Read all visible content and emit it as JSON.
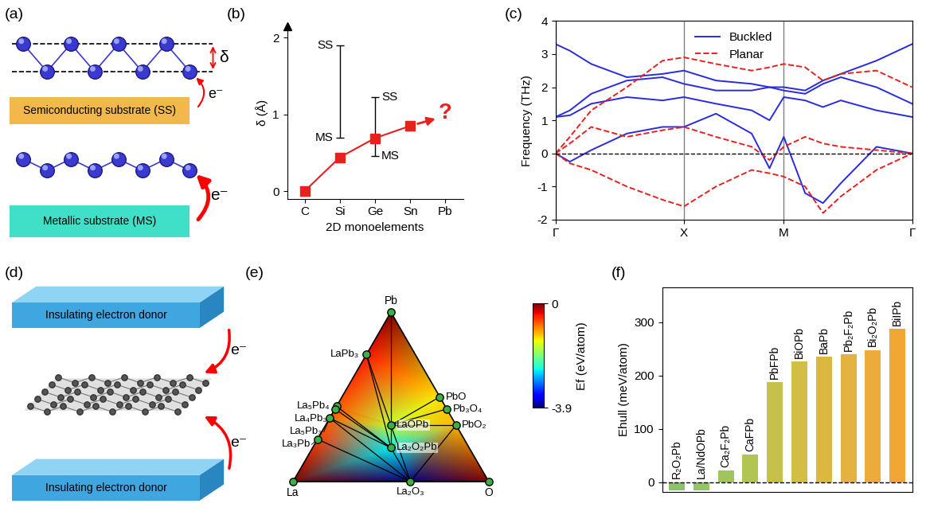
{
  "chart_data": [
    {
      "type": "line",
      "title": "(b)",
      "x_label": "2D monoelements",
      "y_label": "δ (Å)",
      "categories": [
        "C",
        "Si",
        "Ge",
        "Sn",
        "Pb"
      ],
      "values": [
        0,
        0.44,
        0.69,
        0.85,
        null
      ],
      "color": "#e8201e",
      "marker": "square",
      "ylim": [
        -0.1,
        2.15
      ],
      "yticks": [
        0,
        1,
        2
      ],
      "ranges": [
        {
          "category": "Si",
          "low": 0.7,
          "high": 1.9,
          "low_label": "MS",
          "high_label": "SS"
        },
        {
          "category": "Ge",
          "low": 0.46,
          "high": 1.23,
          "low_label": "MS",
          "high_label": "SS"
        }
      ],
      "annotations": [
        "?"
      ]
    },
    {
      "type": "line",
      "title": "(c)",
      "y_label": "Frequency (THz)",
      "x": [
        0,
        0.04,
        0.1,
        0.2,
        0.3,
        0.36,
        0.45,
        0.55,
        0.6,
        0.64,
        0.7,
        0.75,
        0.8,
        0.9,
        1.0
      ],
      "xlim": [
        0,
        1
      ],
      "xticks": [
        {
          "value": 0,
          "label": "Γ"
        },
        {
          "value": 0.36,
          "label": "X"
        },
        {
          "value": 0.64,
          "label": "M"
        },
        {
          "value": 1,
          "label": "Γ"
        }
      ],
      "ylim": [
        -2,
        4
      ],
      "yticks": [
        -2,
        -1,
        0,
        1,
        2,
        3,
        4
      ],
      "grid": "x",
      "legend": "upper center",
      "hline": 0,
      "series": [
        {
          "name": "Buckled",
          "color": "#2a2ae0",
          "line_style": "solid",
          "values": [
            [
              0,
              -0.25,
              0.1,
              0.6,
              0.8,
              0.8,
              1.2,
              0.6,
              -0.45,
              0.5,
              -1.2,
              -1.5,
              -0.9,
              0.2,
              0
            ],
            [
              1.1,
              1.15,
              1.5,
              1.7,
              1.6,
              1.7,
              1.5,
              1.3,
              1.0,
              1.7,
              1.6,
              1.4,
              1.6,
              1.3,
              1.1
            ],
            [
              1.1,
              1.3,
              1.8,
              2.2,
              2.3,
              2.1,
              1.9,
              1.9,
              2.0,
              1.9,
              1.8,
              2.1,
              2.3,
              2.0,
              1.5
            ],
            [
              3.3,
              3.1,
              2.7,
              2.3,
              2.4,
              2.5,
              2.2,
              2.1,
              2.0,
              2.0,
              1.9,
              2.2,
              2.4,
              2.8,
              3.3
            ]
          ]
        },
        {
          "name": "Planar",
          "color": "#e8201e",
          "line_style": "dashed",
          "values": [
            [
              0,
              -0.3,
              -0.5,
              -1.0,
              -1.4,
              -1.6,
              -1.0,
              -0.5,
              -0.6,
              -0.7,
              -1.0,
              -1.8,
              -1.3,
              -0.5,
              0
            ],
            [
              0,
              0.3,
              0.8,
              0.5,
              0.7,
              0.8,
              0.5,
              0.2,
              -0.2,
              0.2,
              0.5,
              0.3,
              0.2,
              0.1,
              0
            ],
            [
              0,
              0.5,
              1.3,
              2.0,
              2.8,
              2.9,
              2.7,
              2.5,
              2.6,
              2.7,
              2.6,
              2.2,
              2.4,
              2.5,
              2.0
            ]
          ]
        }
      ]
    },
    {
      "type": "ternary",
      "title": "(e)",
      "points": [
        {
          "formula": "Pb",
          "La": 0,
          "Pb": 1,
          "O": 0,
          "Ef": 0
        },
        {
          "formula": "La",
          "La": 1,
          "Pb": 0,
          "O": 0,
          "Ef": 0
        },
        {
          "formula": "O",
          "La": 0,
          "Pb": 0,
          "O": 1,
          "Ef": 0
        },
        {
          "formula": "LaPb₃",
          "La": 1,
          "Pb": 3,
          "O": 0,
          "Ef": -0.45
        },
        {
          "formula": "La₅Pb₄",
          "La": 5,
          "Pb": 4,
          "O": 0,
          "Ef": -0.7
        },
        {
          "formula": "La₄Pb₃",
          "La": 4,
          "Pb": 3,
          "O": 0,
          "Ef": -0.7
        },
        {
          "formula": "La₅Pb₃",
          "La": 5,
          "Pb": 3,
          "O": 0,
          "Ef": -0.75
        },
        {
          "formula": "La₃Pb",
          "La": 3,
          "Pb": 1,
          "O": 0,
          "Ef": -0.6
        },
        {
          "formula": "PbO",
          "La": 0,
          "Pb": 1,
          "O": 1,
          "Ef": -1.3
        },
        {
          "formula": "Pb₃O₄",
          "La": 0,
          "Pb": 3,
          "O": 4,
          "Ef": -1.2
        },
        {
          "formula": "PbO₂",
          "La": 0,
          "Pb": 1,
          "O": 2,
          "Ef": -1.1
        },
        {
          "formula": "La₂O₃",
          "La": 2,
          "Pb": 0,
          "O": 3,
          "Ef": -3.9
        },
        {
          "formula": "LaOPb",
          "La": 1,
          "Pb": 1,
          "O": 1,
          "Ef": -1.6
        },
        {
          "formula": "La₂O₂Pb",
          "La": 2,
          "Pb": 1,
          "O": 2,
          "Ef": -2.5
        }
      ],
      "tie_lines": [
        [
          "Pb",
          "LaOPb"
        ],
        [
          "LaPb₃",
          "LaOPb"
        ],
        [
          "LaPb₃",
          "La₂O₂Pb"
        ],
        [
          "La₅Pb₄",
          "La₂O₂Pb"
        ],
        [
          "La₄Pb₃",
          "La₂O₂Pb"
        ],
        [
          "La₅Pb₃",
          "La₂O₂Pb"
        ],
        [
          "La₅Pb₃",
          "La₂O₃"
        ],
        [
          "La₃Pb",
          "La₂O₃"
        ],
        [
          "La₂O₂Pb",
          "La₂O₃"
        ],
        [
          "La₂O₂Pb",
          "LaOPb"
        ],
        [
          "LaOPb",
          "La₂O₃"
        ],
        [
          "LaOPb",
          "PbO"
        ],
        [
          "LaOPb",
          "Pb₃O₄"
        ],
        [
          "LaOPb",
          "PbO₂"
        ],
        [
          "PbO₂",
          "La₂O₃"
        ]
      ],
      "colorbar": {
        "label": "Ef (eV/atom)",
        "range": [
          -3.9,
          0
        ],
        "ticks": [
          -3.9,
          0
        ]
      }
    },
    {
      "type": "bar",
      "title": "(f)",
      "y_label": "Ehull (meV/atom)",
      "categories": [
        "R₂O₂Pb",
        "La/NdOPb",
        "Ca₂F₂Pb",
        "CaFPb",
        "PbFPb",
        "BiOPb",
        "BaPb",
        "Pb₂F₂Pb",
        "Bi₂O₂Pb",
        "BiIPb"
      ],
      "values": [
        -15,
        -15,
        22,
        52,
        188,
        226,
        235,
        240,
        248,
        288
      ],
      "colors": [
        "#8cc26a",
        "#93c466",
        "#a0c55c",
        "#b1c553",
        "#c5c14a",
        "#d2bd45",
        "#dbb842",
        "#e4b23e",
        "#ebac3a",
        "#f2a634"
      ],
      "ylim": [
        -18,
        365
      ],
      "yticks": [
        0,
        100,
        200,
        300
      ],
      "tick_labels": "y",
      "hline": 0
    }
  ],
  "diagrams": [
    {
      "title": "(a)",
      "top_substrate": "Semiconducting substrate (SS)",
      "bottom_substrate": "Metallic substrate (MS)",
      "buckling": "δ",
      "arrows": [
        "e⁻",
        "e⁻"
      ]
    },
    {
      "title": "(d)",
      "donors": [
        "Insulating electron donor",
        "Insulating electron donor"
      ],
      "arrows": [
        "e⁻",
        "e⁻"
      ]
    }
  ]
}
